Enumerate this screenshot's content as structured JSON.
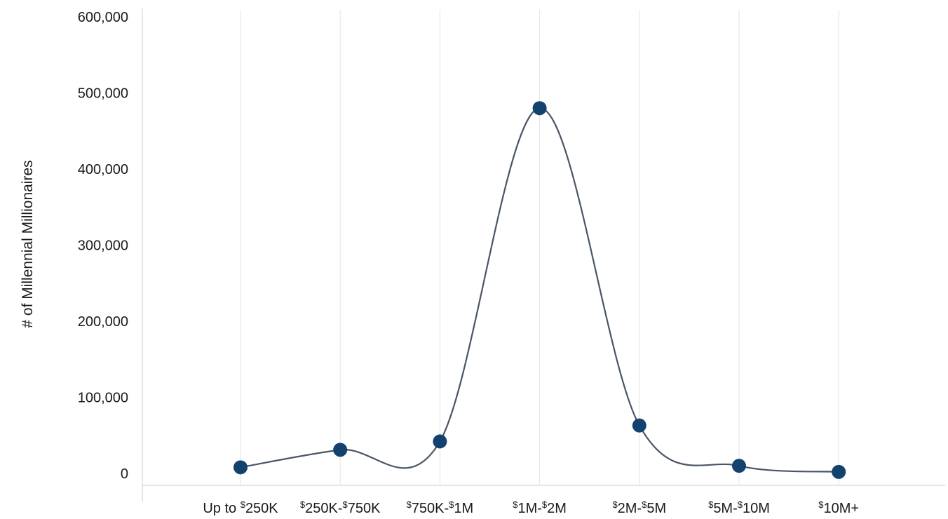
{
  "chart_data": {
    "type": "line",
    "smooth": true,
    "title": "",
    "xlabel": "",
    "ylabel": "# of Millennial Millionaires",
    "ylim": [
      0,
      600000
    ],
    "yticks": [
      0,
      100000,
      200000,
      300000,
      400000,
      500000,
      600000
    ],
    "ytick_labels": [
      "0",
      "100,000",
      "200,000",
      "300,000",
      "400,000",
      "500,000",
      "600,000"
    ],
    "categories": [
      {
        "sup": "",
        "pre": "Up to ",
        "parts": [
          {
            "sup": "$",
            "text": "250K"
          }
        ]
      },
      {
        "parts": [
          {
            "sup": "$",
            "text": "250K-"
          },
          {
            "sup": "$",
            "text": "750K"
          }
        ]
      },
      {
        "parts": [
          {
            "sup": "$",
            "text": "750K-"
          },
          {
            "sup": "$",
            "text": "1M"
          }
        ]
      },
      {
        "parts": [
          {
            "sup": "$",
            "text": "1M-"
          },
          {
            "sup": "$",
            "text": "2M"
          }
        ]
      },
      {
        "parts": [
          {
            "sup": "$",
            "text": "2M-"
          },
          {
            "sup": "$",
            "text": "5M"
          }
        ]
      },
      {
        "parts": [
          {
            "sup": "$",
            "text": "5M-"
          },
          {
            "sup": "$",
            "text": "10M"
          }
        ]
      },
      {
        "parts": [
          {
            "sup": "$",
            "text": "10M+"
          }
        ]
      }
    ],
    "values": [
      8000,
      31000,
      42000,
      480000,
      63000,
      10000,
      2000
    ],
    "grid": "vertical",
    "legend": "none",
    "colors": {
      "line": "#4a5566",
      "marker": "#13426f",
      "grid": "#e3e3e3",
      "axis": "#d5d5d5",
      "text": "#1a1a1a"
    }
  }
}
